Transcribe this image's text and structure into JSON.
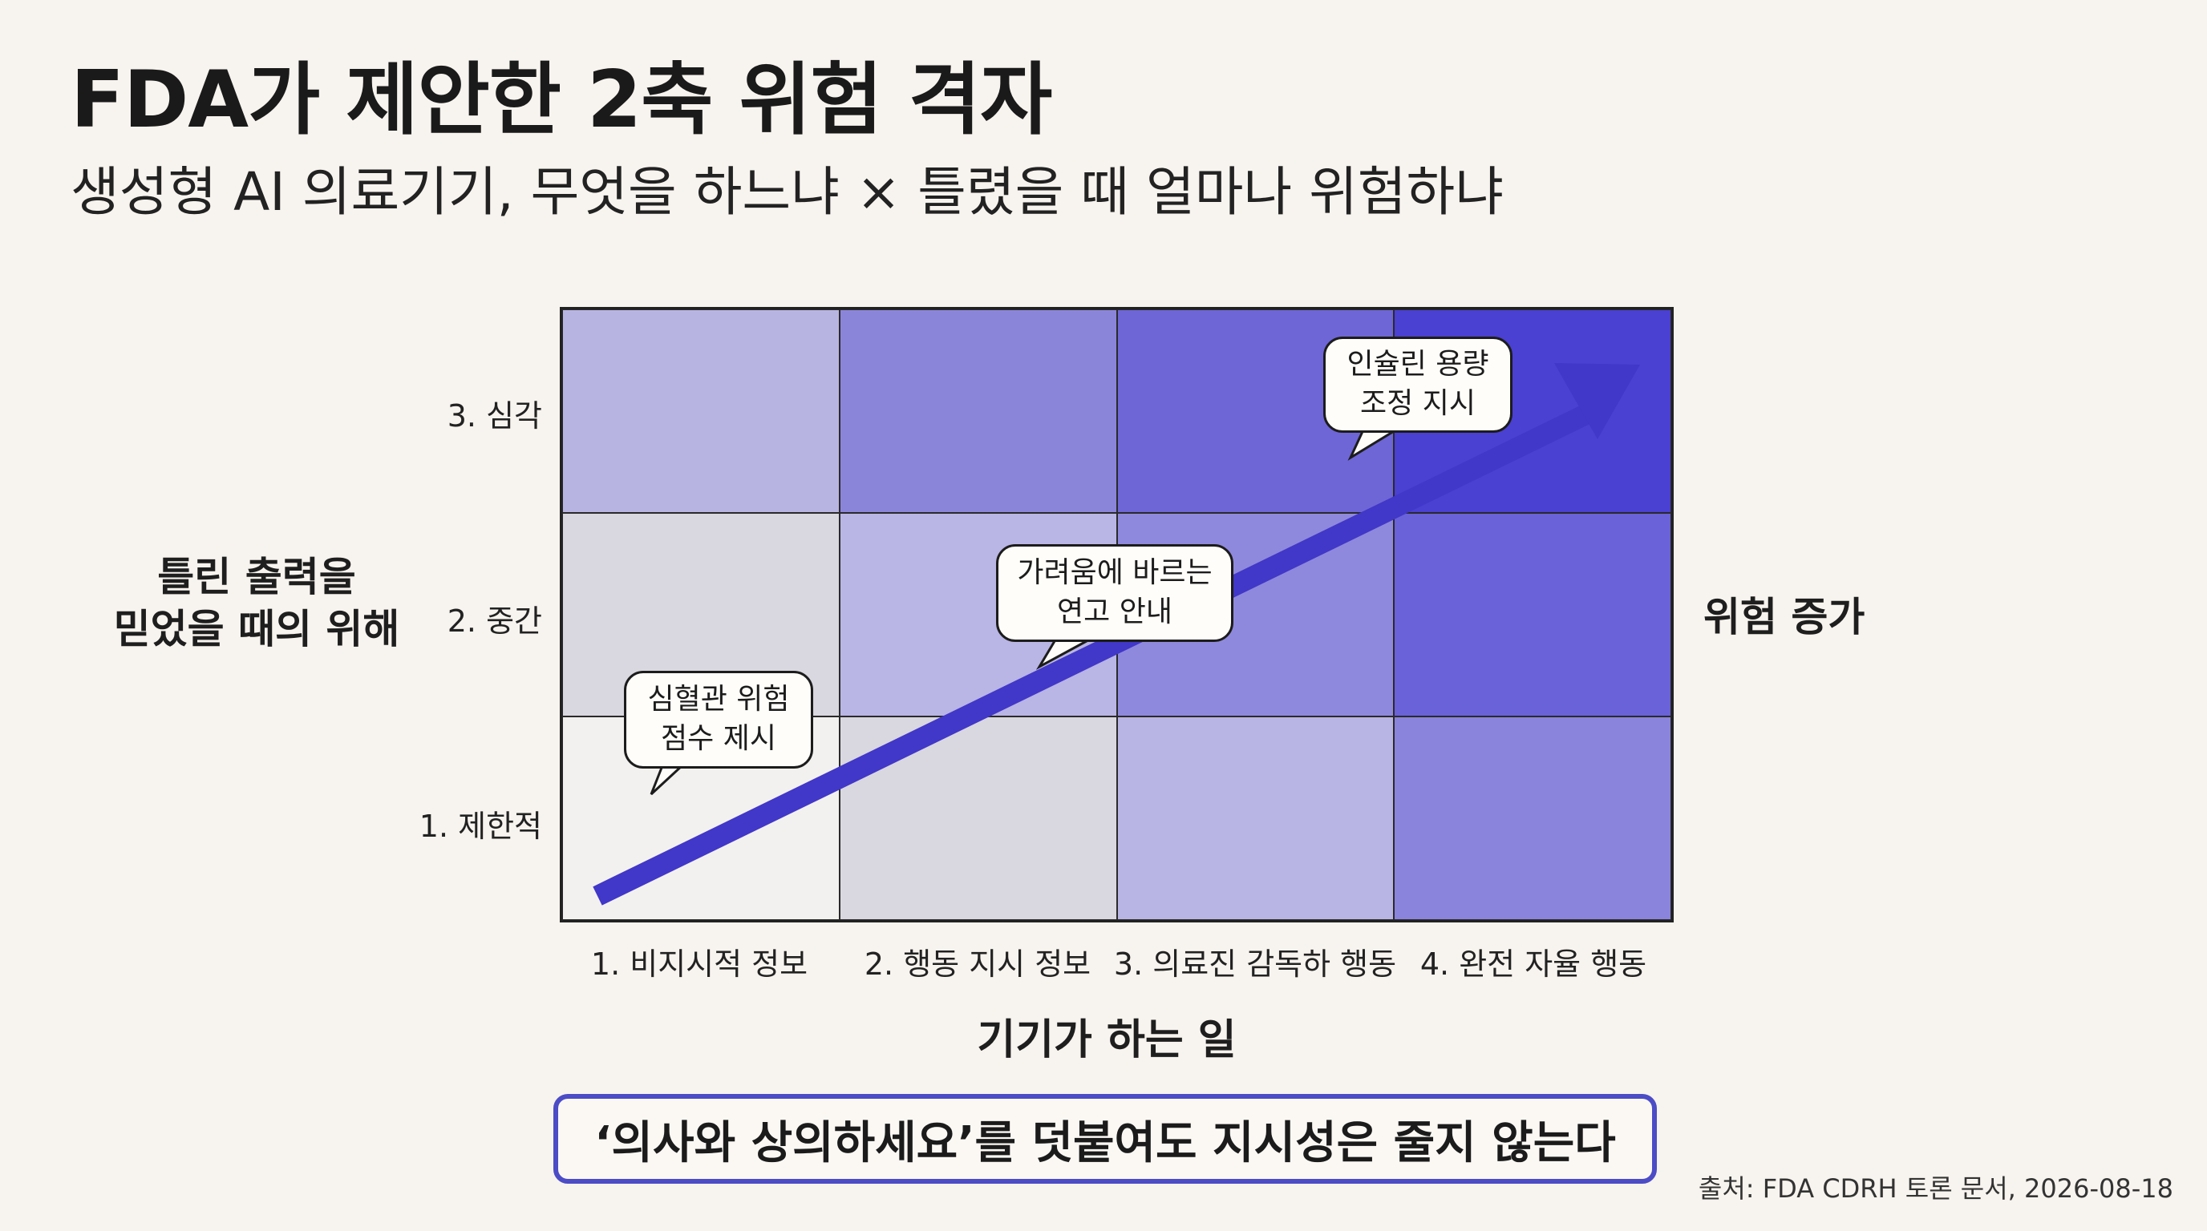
{
  "title": "FDA가 제안한 2축 위험 격자",
  "subtitle": "생성형 AI 의료기기, 무엇을 하느냐 × 틀렸을 때 얼마나 위험하냐",
  "y_axis": {
    "title_lines": [
      "틀린 출력을",
      "믿었을 때의 위해"
    ],
    "ticks": [
      "3. 심각",
      "2. 중간",
      "1. 제한적"
    ]
  },
  "x_axis": {
    "title": "기기가 하는 일",
    "ticks": [
      "1. 비지시적 정보",
      "2. 행동 지시 정보",
      "3. 의료진 감독하 행동",
      "4. 완전 자율 행동"
    ]
  },
  "risk_label": "위험 증가",
  "grid_colors": [
    [
      "#b8b4e2",
      "#8b85da",
      "#6e66d6",
      "#4a40d2"
    ],
    [
      "#d9d7df",
      "#b9b5e5",
      "#8f89dd",
      "#6a62d8"
    ],
    [
      "#f3f1ef",
      "#d9d7df",
      "#b8b4e4",
      "#8a84dc"
    ]
  ],
  "arrow_color": "#4137c8",
  "callouts": [
    {
      "lines": [
        "심혈관 위험",
        "점수 제시"
      ]
    },
    {
      "lines": [
        "가려움에 바르는",
        "연고 안내"
      ]
    },
    {
      "lines": [
        "인슐린 용량",
        "조정 지시"
      ]
    }
  ],
  "note": "‘의사와 상의하세요’를 덧붙여도 지시성은 줄지 않는다",
  "source": "출처: FDA CDRH 토론 문서, 2026-08-18"
}
